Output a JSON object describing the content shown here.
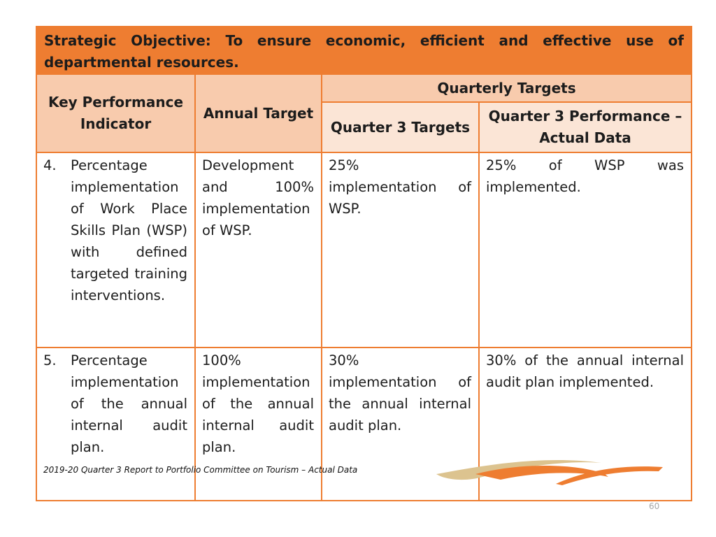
{
  "objective": "Strategic Objective: To ensure economic, efficient and effective use of departmental resources.",
  "headers": {
    "kpi": "Key Performance Indicator",
    "annual_target": "Annual Target",
    "quarterly_targets": "Quarterly Targets",
    "q3_targets": "Quarter 3 Targets",
    "q3_performance": "Quarter 3 Performance – Actual Data"
  },
  "rows": [
    {
      "number": "4.",
      "kpi": "Percentage implementation of Work Place Skills Plan (WSP) with defined targeted training interventions.",
      "annual_target": "Development and 100% implementation of WSP.",
      "q3_target": "25% implementation of WSP.",
      "q3_actual": "25% of WSP was implemented."
    },
    {
      "number": "5.",
      "kpi": "Percentage implementation of the annual internal audit plan.",
      "annual_target": "100% implementation of the annual internal audit plan.",
      "q3_target": "30% implementation of the annual internal audit plan.",
      "q3_actual": "30% of the annual internal audit plan implemented."
    }
  ],
  "footer": "2019-20 Quarter 3 Report to Portfolio Committee on Tourism – Actual Data",
  "page_number": "60",
  "colors": {
    "accent": "#ee7d31",
    "header_fill": "#f8cbad",
    "subheader_fill": "#fbe5d6",
    "logo_gold": "#dcc38f"
  }
}
